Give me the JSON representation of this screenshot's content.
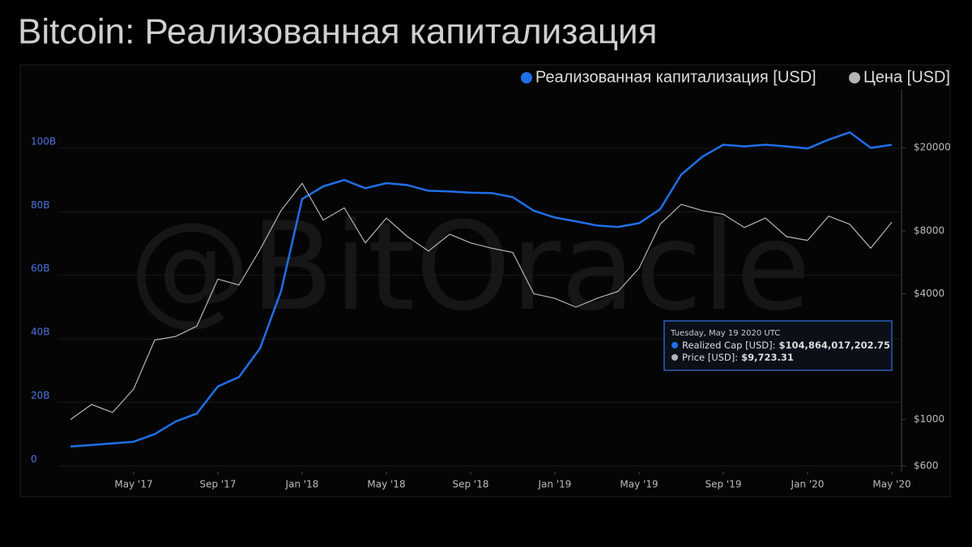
{
  "chart_data": {
    "type": "line",
    "title": "Bitcoin: Реализованная капитализация",
    "watermark": "@BitOracle",
    "x": [
      "2017-02",
      "2017-03",
      "2017-04",
      "2017-05",
      "2017-06",
      "2017-07",
      "2017-08",
      "2017-09",
      "2017-10",
      "2017-11",
      "2017-12",
      "2018-01",
      "2018-02",
      "2018-03",
      "2018-04",
      "2018-05",
      "2018-06",
      "2018-07",
      "2018-08",
      "2018-09",
      "2018-10",
      "2018-11",
      "2018-12",
      "2019-01",
      "2019-02",
      "2019-03",
      "2019-04",
      "2019-05",
      "2019-06",
      "2019-07",
      "2019-08",
      "2019-09",
      "2019-10",
      "2019-11",
      "2019-12",
      "2020-01",
      "2020-02",
      "2020-03",
      "2020-04",
      "2020-05"
    ],
    "xlim": [
      "2017-01",
      "2020-06"
    ],
    "xticks": [
      {
        "value": "2017-05",
        "label": "May '17"
      },
      {
        "value": "2017-09",
        "label": "Sep '17"
      },
      {
        "value": "2018-01",
        "label": "Jan '18"
      },
      {
        "value": "2018-05",
        "label": "May '18"
      },
      {
        "value": "2018-09",
        "label": "Sep '18"
      },
      {
        "value": "2019-01",
        "label": "Jan '19"
      },
      {
        "value": "2019-05",
        "label": "May '19"
      },
      {
        "value": "2019-09",
        "label": "Sep '19"
      },
      {
        "value": "2020-01",
        "label": "Jan '20"
      },
      {
        "value": "2020-05",
        "label": "May '20"
      }
    ],
    "ylim": [
      -1.8,
      118.6
    ],
    "yticks": [
      0,
      {
        "value": 20,
        "label": "20B"
      },
      {
        "value": 40,
        "label": "40B"
      },
      {
        "value": 60,
        "label": "60B"
      },
      {
        "value": 80,
        "label": "80B"
      },
      {
        "value": 100,
        "label": "100B"
      }
    ],
    "y2lim": [
      563,
      38100
    ],
    "y2log": true,
    "y2ticks": [
      {
        "value": 600,
        "label": "$600"
      },
      {
        "value": 1000,
        "label": "$1000"
      },
      {
        "value": 4000,
        "label": "$4000"
      },
      {
        "value": 8000,
        "label": "$8000"
      },
      {
        "value": 20000,
        "label": "$20000"
      }
    ],
    "grid": true,
    "legend": "top-right",
    "series": [
      {
        "name": "Реализованная капитализация [USD]",
        "color": "#1f6fe8",
        "values": [
          6.1,
          6.6,
          7.1,
          7.6,
          10,
          14,
          16.5,
          25,
          28,
          37,
          55,
          84,
          88,
          90,
          87.4,
          89,
          88.4,
          86.6,
          86.4,
          86,
          85.9,
          84.6,
          80.3,
          78.2,
          77,
          75.7,
          75.2,
          76.4,
          80.8,
          91.7,
          97.3,
          101.1,
          100.6,
          101.1,
          100.6,
          99.9,
          102.7,
          105,
          100.1,
          101.1
        ]
      },
      {
        "name": "Цена [USD]",
        "color": "#b5b5b5",
        "axis": "y2",
        "values": [
          1000,
          1180,
          1080,
          1400,
          2400,
          2500,
          2800,
          4700,
          4400,
          6500,
          10000,
          13500,
          9000,
          10300,
          7000,
          9200,
          7500,
          6400,
          7700,
          7000,
          6600,
          6300,
          4000,
          3800,
          3450,
          3800,
          4100,
          5300,
          8600,
          10700,
          10000,
          9600,
          8300,
          9200,
          7500,
          7200,
          9400,
          8600,
          6600,
          8800
        ]
      }
    ],
    "tooltip": {
      "date": "Tuesday, May 19 2020 UTC",
      "rows": [
        {
          "label": "Realized Cap [USD]:",
          "value": "$104,864,017,202.75"
        },
        {
          "label": "Price [USD]:",
          "value": "$9,723.31"
        }
      ]
    }
  }
}
